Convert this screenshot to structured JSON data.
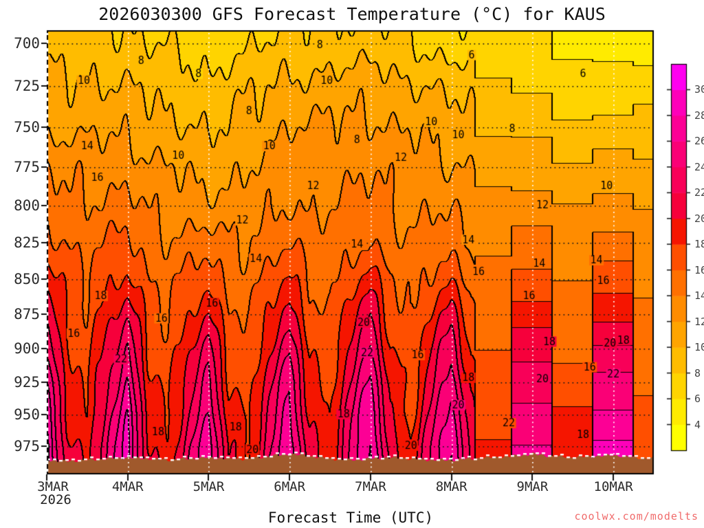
{
  "watermark": {
    "text": "coolwx.com/modelts",
    "color": "#F06A6A"
  },
  "chart_data": {
    "type": "heatmap",
    "title": "2026030300 GFS Forecast Temperature (°C) for KAUS",
    "xlabel": "Forecast Time (UTC)",
    "x_year_label": "2026",
    "x_tick_labels": [
      "3MAR",
      "4MAR",
      "5MAR",
      "6MAR",
      "7MAR",
      "8MAR",
      "9MAR",
      "10MAR"
    ],
    "y_tick_labels": [
      700,
      725,
      750,
      775,
      800,
      825,
      850,
      875,
      900,
      925,
      950,
      975
    ],
    "y_axis": {
      "scale": "log-pressure",
      "top_hpa": 692.5,
      "bottom_hpa": 998,
      "units": "hPa"
    },
    "x_axis": {
      "start": "3MAR 00UTC",
      "end": "10MAR 12UTC",
      "hours_total": 180,
      "units": "UTC"
    },
    "contour_interval_c": 2,
    "time_hours": [
      0,
      6,
      12,
      18,
      24,
      30,
      36,
      42,
      48,
      54,
      60,
      66,
      72,
      78,
      84,
      90,
      96,
      102,
      108,
      114,
      120,
      126,
      132,
      138,
      144,
      150,
      156,
      162,
      168,
      174,
      180
    ],
    "pressure_levels_hpa": [
      690,
      700,
      725,
      750,
      775,
      800,
      825,
      850,
      875,
      900,
      925,
      950,
      975,
      1000
    ],
    "temperature_c": [
      [
        8.5,
        8.4,
        8.3,
        8.1,
        8.0,
        7.6,
        7.3,
        6.9,
        6.5,
        6.9,
        7.3,
        7.6,
        8.0,
        8.1,
        8.3,
        8.4,
        8.5,
        8.0,
        7.5,
        7.0,
        6.5,
        6.4,
        6.3,
        6.1,
        6.0,
        5.8,
        5.5,
        5.3,
        5.0,
        5.3,
        5.5
      ],
      [
        9.0,
        8.9,
        8.8,
        8.6,
        8.5,
        8.1,
        7.8,
        7.4,
        7.0,
        7.4,
        7.8,
        8.1,
        8.5,
        8.6,
        8.8,
        8.9,
        9.0,
        8.5,
        8.0,
        7.5,
        7.0,
        6.9,
        6.8,
        6.6,
        6.5,
        6.3,
        6.0,
        5.8,
        5.5,
        5.8,
        6.0
      ],
      [
        10.5,
        10.4,
        10.3,
        10.1,
        10.0,
        9.6,
        9.3,
        8.9,
        8.5,
        9.0,
        9.5,
        10.0,
        10.5,
        10.6,
        10.8,
        10.9,
        11.0,
        10.6,
        10.3,
        9.9,
        9.5,
        9.1,
        8.8,
        8.4,
        8.0,
        7.8,
        7.5,
        7.3,
        7.0,
        7.3,
        7.5
      ],
      [
        11.5,
        11.5,
        11.5,
        11.5,
        11.5,
        11.0,
        10.5,
        10.0,
        9.5,
        10.1,
        10.8,
        11.4,
        12.0,
        12.1,
        12.3,
        12.4,
        12.5,
        12.1,
        11.8,
        11.4,
        11.0,
        10.6,
        10.3,
        9.9,
        9.5,
        9.3,
        9.0,
        8.8,
        8.5,
        8.8,
        9.0
      ],
      [
        13.7,
        13.4,
        13.3,
        13.2,
        13.2,
        12.5,
        12.0,
        11.6,
        11.2,
        11.5,
        12.0,
        12.6,
        13.2,
        13.2,
        13.3,
        13.5,
        13.7,
        13.2,
        12.8,
        12.5,
        12.2,
        11.8,
        11.5,
        11.3,
        11.1,
        10.8,
        10.5,
        10.3,
        10.2,
        10.3,
        10.5
      ],
      [
        15.2,
        14.5,
        14.3,
        14.5,
        14.7,
        13.7,
        13.0,
        12.9,
        12.7,
        12.5,
        12.8,
        13.5,
        14.2,
        13.8,
        13.8,
        14.3,
        14.7,
        13.9,
        13.5,
        13.7,
        13.7,
        12.9,
        12.5,
        12.5,
        12.4,
        12.0,
        11.8,
        12.0,
        12.1,
        11.7,
        11.5
      ],
      [
        17.0,
        15.8,
        15.3,
        16.0,
        16.6,
        15.0,
        14.3,
        14.7,
        15.0,
        14.1,
        14.1,
        15.1,
        16.1,
        14.9,
        14.6,
        15.4,
        16.2,
        14.7,
        14.1,
        14.7,
        15.2,
        13.8,
        13.3,
        13.7,
        14.0,
        13.1,
        12.8,
        13.4,
        13.9,
        12.9,
        12.6
      ],
      [
        19.5,
        17.0,
        16.2,
        17.5,
        18.7,
        16.1,
        15.2,
        16.4,
        17.5,
        15.4,
        14.9,
        16.6,
        18.2,
        15.9,
        15.4,
        17.2,
        18.9,
        16.1,
        15.2,
        16.6,
        17.9,
        15.2,
        14.3,
        15.2,
        15.9,
        14.4,
        13.9,
        15.2,
        16.4,
        14.5,
        14.1
      ],
      [
        21.7,
        17.7,
        16.5,
        19.2,
        21.5,
        17.1,
        15.8,
        18.1,
        20.2,
        16.4,
        15.5,
        18.4,
        21.0,
        17.0,
        16.0,
        19.1,
        21.8,
        17.2,
        15.8,
        18.4,
        20.8,
        16.6,
        15.4,
        17.2,
        18.8,
        16.1,
        15.2,
        17.5,
        19.5,
        15.7,
        14.7
      ],
      [
        23.6,
        18.3,
        16.9,
        20.6,
        24.0,
        18.1,
        16.4,
        19.7,
        22.6,
        17.4,
        16.1,
        20.0,
        23.5,
        18.0,
        16.6,
        20.7,
        24.4,
        18.2,
        16.4,
        20.1,
        23.4,
        17.7,
        16.2,
        18.7,
        21.0,
        17.4,
        16.3,
        19.5,
        22.3,
        16.9,
        15.3
      ],
      [
        25.6,
        19.1,
        17.5,
        22.0,
        26.0,
        19.0,
        17.0,
        21.0,
        24.6,
        18.3,
        16.7,
        21.3,
        25.5,
        18.9,
        17.2,
        22.1,
        26.5,
        19.1,
        17.0,
        21.4,
        25.5,
        18.9,
        17.3,
        20.5,
        23.4,
        19.0,
        17.7,
        21.3,
        24.6,
        18.3,
        16.4
      ],
      [
        27.0,
        19.9,
        18.0,
        23.0,
        27.5,
        19.8,
        17.5,
        22.0,
        26.0,
        19.0,
        17.3,
        22.4,
        27.0,
        19.6,
        17.8,
        23.2,
        28.0,
        19.9,
        17.5,
        22.5,
        27.0,
        19.8,
        18.1,
        21.7,
        25.0,
        20.1,
        18.7,
        22.8,
        26.5,
        19.3,
        17.0
      ],
      [
        28.5,
        20.9,
        18.8,
        23.9,
        28.5,
        20.5,
        18.3,
        23.1,
        27.5,
        20.0,
        18.0,
        23.3,
        28.0,
        20.3,
        18.3,
        23.9,
        29.0,
        20.6,
        18.3,
        23.7,
        28.5,
        20.8,
        18.8,
        22.5,
        25.8,
        20.8,
        19.5,
        23.9,
        28.0,
        20.1,
        17.5
      ],
      [
        29.0,
        21.4,
        19.3,
        24.4,
        29.0,
        21.0,
        18.8,
        23.6,
        28.0,
        20.5,
        18.5,
        23.8,
        28.5,
        20.8,
        18.8,
        24.4,
        29.5,
        21.1,
        18.8,
        24.2,
        29.0,
        21.3,
        19.3,
        23.0,
        26.3,
        21.3,
        20.0,
        24.4,
        28.5,
        20.6,
        18.0
      ]
    ],
    "surface_pressure_hpa": [
      986,
      987,
      986,
      985,
      984,
      985,
      986,
      985,
      984,
      985,
      985,
      983,
      981,
      983,
      985,
      986,
      985,
      984,
      985,
      986,
      986,
      985,
      984,
      983,
      981,
      983,
      984,
      983,
      982,
      984,
      985
    ],
    "terrain_color": "#A0592C",
    "band_colors_low_to_high": [
      "#FFFF00",
      "#FFEB00",
      "#FFD400",
      "#FFBC00",
      "#FFA400",
      "#FF8C00",
      "#FF7000",
      "#FF4F00",
      "#F51500",
      "#F6003B",
      "#F80058",
      "#FA0076",
      "#FC0095",
      "#FE00B9",
      "#FF00F0"
    ],
    "band_edges_c": [
      4,
      6,
      8,
      10,
      12,
      14,
      16,
      18,
      20,
      22,
      24,
      26,
      28,
      30
    ],
    "colorbar": {
      "tick_labels": [
        30,
        28,
        26,
        24,
        22,
        20,
        18,
        16,
        14,
        12,
        10,
        8,
        6,
        4
      ],
      "position": "right"
    },
    "contour_labels": [
      {
        "t": 11,
        "p": 722,
        "v": "10"
      },
      {
        "t": 12,
        "p": 762,
        "v": "14"
      },
      {
        "t": 15,
        "p": 782,
        "v": "16"
      },
      {
        "t": 16,
        "p": 862,
        "v": "18"
      },
      {
        "t": 22,
        "p": 908,
        "v": "22"
      },
      {
        "t": 33,
        "p": 964,
        "v": "18"
      },
      {
        "t": 8,
        "p": 889,
        "v": "16"
      },
      {
        "t": 39,
        "p": 768,
        "v": "10"
      },
      {
        "t": 34,
        "p": 878,
        "v": "16"
      },
      {
        "t": 56,
        "p": 960,
        "v": "18"
      },
      {
        "t": 60,
        "p": 740,
        "v": "8"
      },
      {
        "t": 66,
        "p": 762,
        "v": "10"
      },
      {
        "t": 49,
        "p": 867,
        "v": "16"
      },
      {
        "t": 61,
        "p": 978,
        "v": "20"
      },
      {
        "t": 81,
        "p": 701,
        "v": "8"
      },
      {
        "t": 83,
        "p": 722,
        "v": "10"
      },
      {
        "t": 92,
        "p": 758,
        "v": "8"
      },
      {
        "t": 105,
        "p": 769,
        "v": "12"
      },
      {
        "t": 94,
        "p": 881,
        "v": "20"
      },
      {
        "t": 95,
        "p": 903,
        "v": "22"
      },
      {
        "t": 114,
        "p": 747,
        "v": "10"
      },
      {
        "t": 122,
        "p": 755,
        "v": "10"
      },
      {
        "t": 126,
        "p": 707,
        "v": "6"
      },
      {
        "t": 138,
        "p": 751,
        "v": "8"
      },
      {
        "t": 128,
        "p": 845,
        "v": "16"
      },
      {
        "t": 125,
        "p": 922,
        "v": "18"
      },
      {
        "t": 122,
        "p": 943,
        "v": "20"
      },
      {
        "t": 137,
        "p": 957,
        "v": "22"
      },
      {
        "t": 146,
        "p": 839,
        "v": "14"
      },
      {
        "t": 143,
        "p": 862,
        "v": "16"
      },
      {
        "t": 149,
        "p": 895,
        "v": "18"
      },
      {
        "t": 147,
        "p": 923,
        "v": "20"
      },
      {
        "t": 161,
        "p": 914,
        "v": "16"
      },
      {
        "t": 165,
        "p": 851,
        "v": "16"
      },
      {
        "t": 167,
        "p": 896,
        "v": "20"
      },
      {
        "t": 168,
        "p": 919,
        "v": "22"
      },
      {
        "t": 171,
        "p": 894,
        "v": "18"
      },
      {
        "t": 159,
        "p": 966,
        "v": "18"
      },
      {
        "t": 58,
        "p": 810,
        "v": "12"
      },
      {
        "t": 79,
        "p": 787,
        "v": "12"
      },
      {
        "t": 62,
        "p": 836,
        "v": "14"
      },
      {
        "t": 92,
        "p": 826,
        "v": "14"
      },
      {
        "t": 125,
        "p": 823,
        "v": "14"
      },
      {
        "t": 147,
        "p": 800,
        "v": "12"
      },
      {
        "t": 166,
        "p": 787,
        "v": "10"
      },
      {
        "t": 163,
        "p": 837,
        "v": "14"
      },
      {
        "t": 110,
        "p": 905,
        "v": "16"
      },
      {
        "t": 108,
        "p": 975,
        "v": "20"
      },
      {
        "t": 88,
        "p": 950,
        "v": "18"
      },
      {
        "t": 159,
        "p": 718,
        "v": "6"
      },
      {
        "t": 28,
        "p": 710,
        "v": "8"
      },
      {
        "t": 45,
        "p": 718,
        "v": "8"
      }
    ]
  }
}
